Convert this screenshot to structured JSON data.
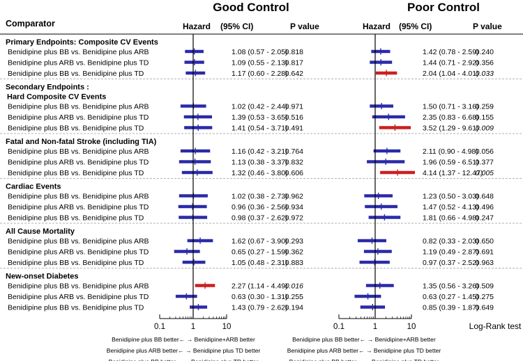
{
  "header": {
    "comparator": "Comparator",
    "good_title": "Good Control",
    "poor_title": "Poor Control",
    "hazard": "Hazard",
    "ci": "(95% CI)",
    "pvalue": "P value"
  },
  "colors": {
    "bar": "#2a2aa8",
    "significant": "#cc1f1f",
    "axis": "#000000",
    "divider": "#999999"
  },
  "chart_data": {
    "type": "forest",
    "x_scale": "log",
    "xlim": [
      0.1,
      10
    ],
    "ticks": [
      {
        "value": 0.1,
        "label": "0.1"
      },
      {
        "value": 1,
        "label": "1"
      },
      {
        "value": 10,
        "label": "10"
      }
    ],
    "axis_footer": "Log-Rank test",
    "panels": [
      {
        "name": "Good Control",
        "legend": [
          "Benidipine plus BB better← → Benidipine+ARB better",
          "Benidipine plus ARB better← → Benidipine plus TD better",
          "Benidipine plus BB better← → Benidipine plus TD better"
        ]
      },
      {
        "name": "Poor Control",
        "legend": [
          "Benidipine plus BB better← → Benidipine+ARB better",
          "Benidipine plus ARB better← → Benidipine plus TD better",
          "Benidipine plus BB better← → Benidipine plus TD better"
        ]
      }
    ],
    "sections": [
      {
        "title": "Primary Endpoints:   Composite CV Events",
        "rows": [
          {
            "label": "Benidipine plus BB vs. Benidipine plus ARB",
            "good": {
              "hr": 1.08,
              "lo": 0.57,
              "hi": 2.05,
              "ci_text": "1.08 (0.57 - 2.05)",
              "p": "0.818",
              "sig": false
            },
            "poor": {
              "hr": 1.42,
              "lo": 0.78,
              "hi": 2.59,
              "ci_text": "1.42 (0.78 - 2.59)",
              "p": "0.240",
              "sig": false
            }
          },
          {
            "label": "Benidipine plus ARB vs. Benidipine plus TD",
            "good": {
              "hr": 1.09,
              "lo": 0.55,
              "hi": 2.13,
              "ci_text": "1.09 (0.55 - 2.13)",
              "p": "0.817",
              "sig": false
            },
            "poor": {
              "hr": 1.44,
              "lo": 0.71,
              "hi": 2.92,
              "ci_text": "1.44 (0.71 - 2.92)",
              "p": "0.356",
              "sig": false
            }
          },
          {
            "label": "Benidipine plus BB vs. Benidipine plus TD",
            "good": {
              "hr": 1.17,
              "lo": 0.6,
              "hi": 2.28,
              "ci_text": "1.17 (0.60 - 2.28)",
              "p": "0.642",
              "sig": false
            },
            "poor": {
              "hr": 2.04,
              "lo": 1.04,
              "hi": 4.01,
              "ci_text": "2.04 (1.04 - 4.01)",
              "p": "0.033",
              "sig": true
            }
          }
        ]
      },
      {
        "title": "Secondary Endpoints :",
        "subtitle": "Hard Composite CV Events",
        "rows": [
          {
            "label": "Benidipine plus BB vs. Benidipine plus ARB",
            "good": {
              "hr": 1.02,
              "lo": 0.42,
              "hi": 2.44,
              "ci_text": "1.02 (0.42 - 2.44)",
              "p": "0.971",
              "sig": false
            },
            "poor": {
              "hr": 1.5,
              "lo": 0.71,
              "hi": 3.16,
              "ci_text": "1.50 (0.71 - 3.16)",
              "p": "0.259",
              "sig": false
            }
          },
          {
            "label": "Benidipine plus ARB vs. Benidipine plus TD",
            "good": {
              "hr": 1.39,
              "lo": 0.53,
              "hi": 3.65,
              "ci_text": "1.39 (0.53 - 3.65)",
              "p": "0.516",
              "sig": false
            },
            "poor": {
              "hr": 2.35,
              "lo": 0.83,
              "hi": 6.68,
              "ci_text": "2.35 (0.83 - 6.68)",
              "p": "0.155",
              "sig": false
            }
          },
          {
            "label": "Benidipine plus BB vs. Benidipine plus TD",
            "good": {
              "hr": 1.41,
              "lo": 0.54,
              "hi": 3.71,
              "ci_text": "1.41 (0.54 - 3.71)",
              "p": "0.491",
              "sig": false
            },
            "poor": {
              "hr": 3.52,
              "lo": 1.29,
              "hi": 9.61,
              "ci_text": "3.52 (1.29 - 9.61)",
              "p": "0.009",
              "sig": true
            }
          }
        ]
      },
      {
        "title": "Fatal and Non-fatal Stroke (including TIA)",
        "rows": [
          {
            "label": "Benidipine plus BB vs. Benidipine plus ARB",
            "good": {
              "hr": 1.16,
              "lo": 0.42,
              "hi": 3.21,
              "ci_text": "1.16 (0.42 - 3.21)",
              "p": "0.764",
              "sig": false
            },
            "poor": {
              "hr": 2.11,
              "lo": 0.9,
              "hi": 4.98,
              "ci_text": "2.11 (0.90 - 4.98)",
              "p": "0.056",
              "sig": false
            }
          },
          {
            "label": "Benidipine plus ARB vs. Benidipine plus TD",
            "good": {
              "hr": 1.13,
              "lo": 0.38,
              "hi": 3.37,
              "ci_text": "1.13 (0.38 - 3.37)",
              "p": "0.832",
              "sig": false
            },
            "poor": {
              "hr": 1.96,
              "lo": 0.59,
              "hi": 6.51,
              "ci_text": "1.96 (0.59 - 6.51)",
              "p": "0.377",
              "sig": false
            }
          },
          {
            "label": "Benidipine plus BB vs. Benidipine plus TD",
            "good": {
              "hr": 1.32,
              "lo": 0.46,
              "hi": 3.8,
              "ci_text": "1.32 (0.46 - 3.80)",
              "p": "0.606",
              "sig": false
            },
            "poor": {
              "hr": 4.14,
              "lo": 1.37,
              "hi": 12.47,
              "ci_text": "4.14 (1.37 - 12.47)",
              "p": "0.005",
              "sig": true
            }
          }
        ]
      },
      {
        "title": "Cardiac Events",
        "rows": [
          {
            "label": "Benidipine plus BB vs. Benidipine plus ARB",
            "good": {
              "hr": 1.02,
              "lo": 0.38,
              "hi": 2.73,
              "ci_text": "1.02 (0.38 - 2.73)",
              "p": "0.962",
              "sig": false
            },
            "poor": {
              "hr": 1.23,
              "lo": 0.5,
              "hi": 3.03,
              "ci_text": "1.23 (0.50 - 3.03)",
              "p": "0.648",
              "sig": false
            }
          },
          {
            "label": "Benidipine plus ARB vs. Benidipine plus TD",
            "good": {
              "hr": 0.96,
              "lo": 0.36,
              "hi": 2.56,
              "ci_text": "0.96 (0.36 - 2.56)",
              "p": "0.934",
              "sig": false
            },
            "poor": {
              "hr": 1.47,
              "lo": 0.52,
              "hi": 4.13,
              "ci_text": "1.47 (0.52 - 4.13)",
              "p": "0.496",
              "sig": false
            }
          },
          {
            "label": "Benidipine plus BB vs. Benidipine plus TD",
            "good": {
              "hr": 0.98,
              "lo": 0.37,
              "hi": 2.62,
              "ci_text": "0.98 (0.37 - 2.62)",
              "p": "0.972",
              "sig": false
            },
            "poor": {
              "hr": 1.81,
              "lo": 0.66,
              "hi": 4.98,
              "ci_text": "1.81 (0.66 - 4.98)",
              "p": "0.247",
              "sig": false
            }
          }
        ]
      },
      {
        "title": "All Cause Mortality",
        "rows": [
          {
            "label": "Benidipine plus BB vs. Benidipine plus ARB",
            "good": {
              "hr": 1.62,
              "lo": 0.67,
              "hi": 3.9,
              "ci_text": "1.62 (0.67 - 3.90)",
              "p": "0.293",
              "sig": false
            },
            "poor": {
              "hr": 0.82,
              "lo": 0.33,
              "hi": 2.03,
              "ci_text": "0.82 (0.33 - 2.03)",
              "p": "0.650",
              "sig": false
            }
          },
          {
            "label": "Benidipine plus ARB vs. Benidipine plus TD",
            "good": {
              "hr": 0.65,
              "lo": 0.27,
              "hi": 1.59,
              "ci_text": "0.65 (0.27 - 1.59)",
              "p": "0.362",
              "sig": false
            },
            "poor": {
              "hr": 1.19,
              "lo": 0.49,
              "hi": 2.87,
              "ci_text": "1.19 (0.49 - 2.87)",
              "p": "0.691",
              "sig": false
            }
          },
          {
            "label": "Benidipine plus BB vs. Benidipine plus TD",
            "good": {
              "hr": 1.05,
              "lo": 0.48,
              "hi": 2.31,
              "ci_text": "1.05 (0.48 - 2.31)",
              "p": "0.883",
              "sig": false
            },
            "poor": {
              "hr": 0.97,
              "lo": 0.37,
              "hi": 2.52,
              "ci_text": "0.97 (0.37 - 2.52)",
              "p": "0.963",
              "sig": false
            }
          }
        ]
      },
      {
        "title": "New-onset Diabetes",
        "rows": [
          {
            "label": "Benidipine plus BB vs. Benidipine plus ARB",
            "good": {
              "hr": 2.27,
              "lo": 1.14,
              "hi": 4.49,
              "ci_text": "2.27 (1.14 - 4.49)",
              "p": "0.016",
              "sig": true
            },
            "poor": {
              "hr": 1.35,
              "lo": 0.56,
              "hi": 3.26,
              "ci_text": "1.35 (0.56 - 3.26)",
              "p": "0.509",
              "sig": false
            }
          },
          {
            "label": "Benidipine plus ARB vs. Benidipine plus TD",
            "good": {
              "hr": 0.63,
              "lo": 0.3,
              "hi": 1.31,
              "ci_text": "0.63 (0.30 - 1.31)",
              "p": "0.255",
              "sig": false
            },
            "poor": {
              "hr": 0.63,
              "lo": 0.27,
              "hi": 1.45,
              "ci_text": "0.63 (0.27 - 1.45)",
              "p": "0.275",
              "sig": false
            }
          },
          {
            "label": "Benidipine plus BB vs. Benidipine plus TD",
            "good": {
              "hr": 1.43,
              "lo": 0.79,
              "hi": 2.62,
              "ci_text": "1.43 (0.79 - 2.62)",
              "p": "0.194",
              "sig": false
            },
            "poor": {
              "hr": 0.85,
              "lo": 0.39,
              "hi": 1.87,
              "ci_text": "0.85 (0.39 - 1.87)",
              "p": "0.649",
              "sig": false
            }
          }
        ]
      }
    ]
  }
}
